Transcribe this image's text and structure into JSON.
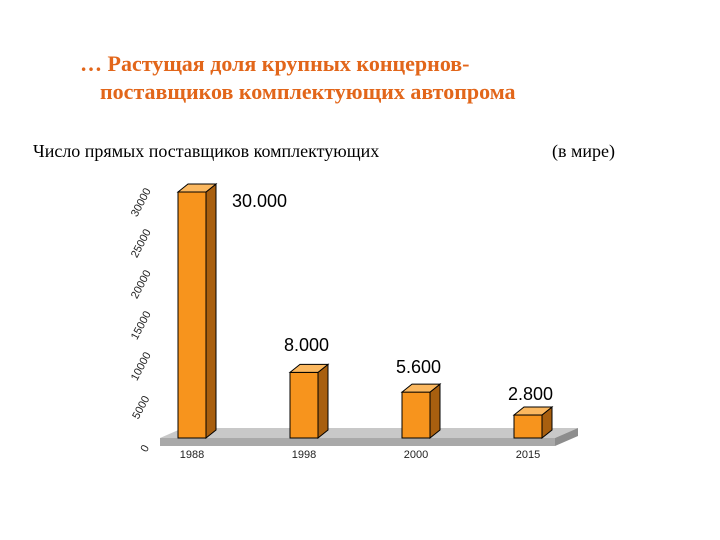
{
  "slide": {
    "title_line1": "… Растущая доля крупных концернов-",
    "title_line2": "поставщиков комплектующих автопрома",
    "subtitle": "Число прямых поставщиков комплектующих",
    "subtitle_right": "(в мире)",
    "title_color": "#e2661a"
  },
  "chart_data": {
    "type": "bar",
    "categories": [
      "1988",
      "1998",
      "2000",
      "2015"
    ],
    "values": [
      30000,
      8000,
      5600,
      2800
    ],
    "data_labels": [
      "30.000",
      "8.000",
      "5.600",
      "2.800"
    ],
    "y_ticks": [
      "0",
      "5000",
      "10000",
      "15000",
      "20000",
      "25000",
      "30000"
    ],
    "ylim": [
      0,
      30000
    ],
    "grid": false,
    "bar_color": "#f7941d",
    "floor_color": "#c8c8c8"
  }
}
